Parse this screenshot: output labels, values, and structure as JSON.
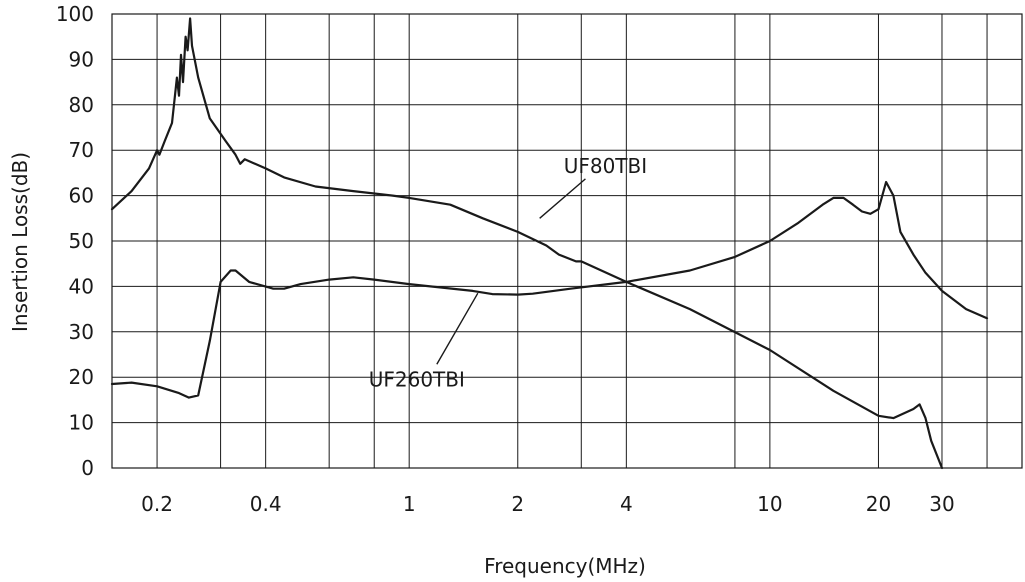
{
  "chart_data": {
    "type": "line",
    "title": "",
    "xlabel": "Frequency(MHz)",
    "ylabel": "Insertion Loss(dB)",
    "x_scale": "log",
    "xlim": [
      0.15,
      50
    ],
    "ylim": [
      0,
      100
    ],
    "grid": true,
    "x_ticks": [
      {
        "value": 0.2,
        "label": "0.2"
      },
      {
        "value": 0.4,
        "label": "0.4"
      },
      {
        "value": 1,
        "label": "1"
      },
      {
        "value": 2,
        "label": "2"
      },
      {
        "value": 4,
        "label": "4"
      },
      {
        "value": 10,
        "label": "10"
      },
      {
        "value": 20,
        "label": "20"
      },
      {
        "value": 30,
        "label": "30"
      }
    ],
    "x_grid": [
      0.2,
      0.3,
      0.4,
      0.6,
      0.8,
      1,
      2,
      3,
      4,
      8,
      10,
      20,
      30,
      40,
      50
    ],
    "y_ticks": [
      0,
      10,
      20,
      30,
      40,
      50,
      60,
      70,
      80,
      90,
      100
    ],
    "series": [
      {
        "name": "UF80TBI",
        "points": [
          [
            0.15,
            57
          ],
          [
            0.17,
            61
          ],
          [
            0.19,
            66
          ],
          [
            0.2,
            70
          ],
          [
            0.203,
            69
          ],
          [
            0.21,
            72
          ],
          [
            0.22,
            76
          ],
          [
            0.227,
            86
          ],
          [
            0.23,
            82
          ],
          [
            0.233,
            91
          ],
          [
            0.236,
            85
          ],
          [
            0.24,
            95
          ],
          [
            0.243,
            92
          ],
          [
            0.247,
            99
          ],
          [
            0.25,
            93
          ],
          [
            0.26,
            86
          ],
          [
            0.28,
            77
          ],
          [
            0.31,
            72
          ],
          [
            0.33,
            69
          ],
          [
            0.34,
            67
          ],
          [
            0.35,
            68
          ],
          [
            0.4,
            66
          ],
          [
            0.45,
            64
          ],
          [
            0.55,
            62
          ],
          [
            0.7,
            61
          ],
          [
            0.9,
            60
          ],
          [
            1,
            59.5
          ],
          [
            1.3,
            58
          ],
          [
            1.6,
            55
          ],
          [
            2,
            52
          ],
          [
            2.4,
            49
          ],
          [
            2.6,
            47
          ],
          [
            2.9,
            45.5
          ],
          [
            3,
            45.5
          ],
          [
            4,
            41
          ],
          [
            6,
            35
          ],
          [
            10,
            26
          ],
          [
            15,
            17
          ],
          [
            20,
            11.5
          ],
          [
            22,
            11
          ],
          [
            25,
            13
          ],
          [
            26,
            14
          ],
          [
            27,
            11
          ],
          [
            28,
            6
          ],
          [
            30,
            0
          ]
        ]
      },
      {
        "name": "UF260TBI",
        "points": [
          [
            0.15,
            18.5
          ],
          [
            0.17,
            18.8
          ],
          [
            0.2,
            18
          ],
          [
            0.23,
            16.5
          ],
          [
            0.245,
            15.5
          ],
          [
            0.26,
            16
          ],
          [
            0.28,
            28
          ],
          [
            0.3,
            41
          ],
          [
            0.32,
            43.5
          ],
          [
            0.33,
            43.5
          ],
          [
            0.36,
            41
          ],
          [
            0.42,
            39.5
          ],
          [
            0.45,
            39.5
          ],
          [
            0.5,
            40.5
          ],
          [
            0.6,
            41.5
          ],
          [
            0.7,
            42
          ],
          [
            0.8,
            41.5
          ],
          [
            1,
            40.5
          ],
          [
            1.5,
            39
          ],
          [
            1.7,
            38.3
          ],
          [
            2,
            38.2
          ],
          [
            2.2,
            38.4
          ],
          [
            2.8,
            39.5
          ],
          [
            4,
            41
          ],
          [
            6,
            43.5
          ],
          [
            8,
            46.5
          ],
          [
            10,
            50
          ],
          [
            12,
            54
          ],
          [
            14,
            58
          ],
          [
            15,
            59.5
          ],
          [
            16,
            59.5
          ],
          [
            17,
            58
          ],
          [
            18,
            56.5
          ],
          [
            19,
            56
          ],
          [
            20,
            57
          ],
          [
            21,
            63
          ],
          [
            22,
            60
          ],
          [
            23,
            52
          ],
          [
            25,
            47
          ],
          [
            27,
            43
          ],
          [
            30,
            39
          ],
          [
            35,
            35
          ],
          [
            40,
            33
          ]
        ]
      }
    ],
    "annotations": [
      {
        "text": "UF80TBI",
        "x": 3.5,
        "y": 65,
        "target_x": 2.3,
        "target_y": 55
      },
      {
        "text": "UF260TBI",
        "x": 1.05,
        "y": 18,
        "target_x": 1.55,
        "target_y": 38.5
      }
    ]
  }
}
